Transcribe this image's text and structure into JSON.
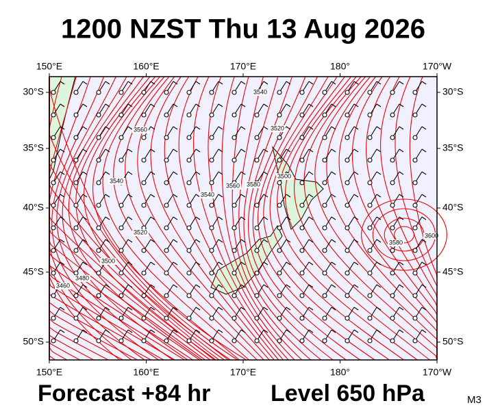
{
  "title": "1200 NZST Thu 13 Aug 2026",
  "lon_ticks": [
    {
      "value": 150,
      "label": "150°E"
    },
    {
      "value": 160,
      "label": "160°E"
    },
    {
      "value": 170,
      "label": "170°E"
    },
    {
      "value": 180,
      "label": "180°"
    },
    {
      "value": 190,
      "label": "170°W"
    }
  ],
  "lat_ticks": [
    {
      "value": 30,
      "label": "30°S"
    },
    {
      "value": 35,
      "label": "35°S"
    },
    {
      "value": 40,
      "label": "40°S"
    },
    {
      "value": 45,
      "label": "45°S"
    },
    {
      "value": 50,
      "label": "50°S"
    }
  ],
  "contour_labels": [
    "3540",
    "3520",
    "3500",
    "3560",
    "3540",
    "3560",
    "3580",
    "3540",
    "3520",
    "3500",
    "3480",
    "3460",
    "3580",
    "3600"
  ],
  "footer": {
    "forecast": "Forecast +84 hr",
    "level": "Level 650 hPa",
    "model": "M3"
  }
}
